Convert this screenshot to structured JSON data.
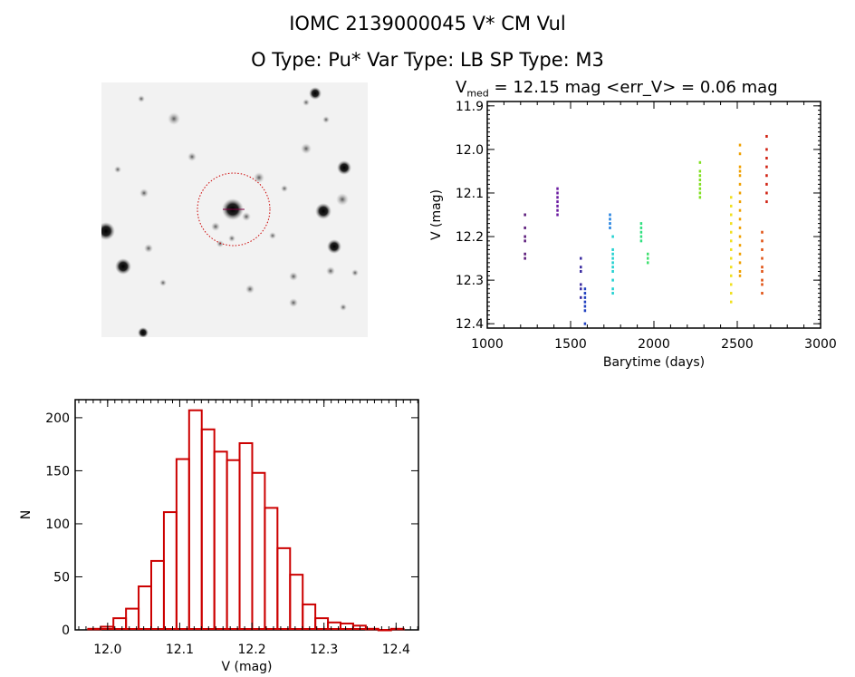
{
  "header": {
    "title": "IOMC 2139000045    V* CM Vul",
    "subtitle": "O Type: Pu*   Var Type: LB   SP Type: M3"
  },
  "chart_data": [
    {
      "type": "image",
      "description_marks": "star field cutout with red dashed aperture circle around target"
    },
    {
      "type": "scatter",
      "title_main": "V",
      "title_sub": "med",
      "title_rest": " = 12.15 mag <err_V> = 0.06 mag",
      "xlabel": "Barytime (days)",
      "ylabel": "V (mag)",
      "xlim": [
        1000,
        3000
      ],
      "ylim": [
        12.41,
        11.89
      ],
      "y_inverted": true,
      "xticks": [
        "1000",
        "1500",
        "2000",
        "2500",
        "3000"
      ],
      "yticks": [
        "11.9",
        "12.0",
        "12.1",
        "12.2",
        "12.3",
        "12.4"
      ],
      "grid": false,
      "series": [
        {
          "color": "#5a1a7a",
          "x": 1225,
          "y": [
            12.15,
            12.18,
            12.2,
            12.21,
            12.24,
            12.25
          ]
        },
        {
          "color": "#6a1aa0",
          "x": 1420,
          "y": [
            12.09,
            12.1,
            12.11,
            12.12,
            12.13,
            12.14,
            12.15
          ]
        },
        {
          "color": "#3a2aa0",
          "x": 1560,
          "y": [
            12.25,
            12.27,
            12.28,
            12.31,
            12.32,
            12.34
          ]
        },
        {
          "color": "#2040c0",
          "x": 1585,
          "y": [
            12.32,
            12.33,
            12.34,
            12.35,
            12.36,
            12.37,
            12.4
          ]
        },
        {
          "color": "#2080e0",
          "x": 1735,
          "y": [
            12.15,
            12.16,
            12.17,
            12.18
          ]
        },
        {
          "color": "#20d0d0",
          "x": 1752,
          "y": [
            12.2,
            12.23,
            12.24,
            12.25,
            12.26,
            12.27,
            12.28,
            12.3,
            12.32,
            12.33
          ]
        },
        {
          "color": "#30e080",
          "x": 1922,
          "y": [
            12.17,
            12.18,
            12.19,
            12.2,
            12.21
          ]
        },
        {
          "color": "#40e070",
          "x": 1962,
          "y": [
            12.24,
            12.25,
            12.26
          ]
        },
        {
          "color": "#80e020",
          "x": 2275,
          "y": [
            12.03,
            12.05,
            12.06,
            12.07,
            12.08,
            12.09,
            12.1,
            12.11
          ]
        },
        {
          "color": "#f0e020",
          "x": 2462,
          "y": [
            12.11,
            12.13,
            12.15,
            12.17,
            12.19,
            12.21,
            12.23,
            12.25,
            12.27,
            12.29,
            12.31,
            12.33,
            12.35
          ]
        },
        {
          "color": "#f0a000",
          "x": 2515,
          "y": [
            11.99,
            12.01,
            12.04,
            12.05,
            12.06,
            12.08,
            12.1,
            12.12,
            12.14,
            12.16,
            12.18,
            12.2,
            12.22,
            12.24,
            12.26,
            12.28,
            12.29
          ]
        },
        {
          "color": "#e05010",
          "x": 2648,
          "y": [
            12.19,
            12.21,
            12.23,
            12.25,
            12.27,
            12.28,
            12.3,
            12.31,
            12.33
          ]
        },
        {
          "color": "#d02010",
          "x": 2675,
          "y": [
            11.97,
            12.0,
            12.02,
            12.04,
            12.06,
            12.08,
            12.1,
            12.12
          ]
        }
      ]
    },
    {
      "type": "bar",
      "subtype": "histogram",
      "xlabel": "V (mag)",
      "ylabel": "N",
      "xlim": [
        11.955,
        12.431
      ],
      "ylim": [
        0,
        217
      ],
      "xticks": [
        "12.0",
        "12.1",
        "12.2",
        "12.3",
        "12.4"
      ],
      "yticks": [
        "0",
        "50",
        "100",
        "150",
        "200"
      ],
      "bin_start": 11.973,
      "bin_width": 0.0175,
      "color": "#cc0000",
      "values": [
        1,
        3,
        11,
        20,
        41,
        65,
        111,
        161,
        207,
        189,
        168,
        160,
        176,
        148,
        115,
        77,
        52,
        24,
        11,
        7,
        6,
        4,
        1,
        0,
        1
      ]
    }
  ]
}
